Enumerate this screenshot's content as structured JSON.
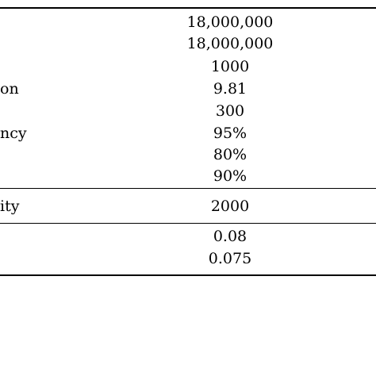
{
  "table": {
    "section1": {
      "labels": [
        "",
        "",
        "",
        "on",
        "",
        "ncy",
        "",
        ""
      ],
      "values": [
        "18,000,000",
        "18,000,000",
        "1000",
        "9.81",
        "300",
        "95%",
        "80%",
        "90%"
      ]
    },
    "section2": {
      "label": "ity",
      "value": "2000"
    },
    "section3": {
      "values": [
        "0.08",
        "0.075"
      ]
    }
  }
}
